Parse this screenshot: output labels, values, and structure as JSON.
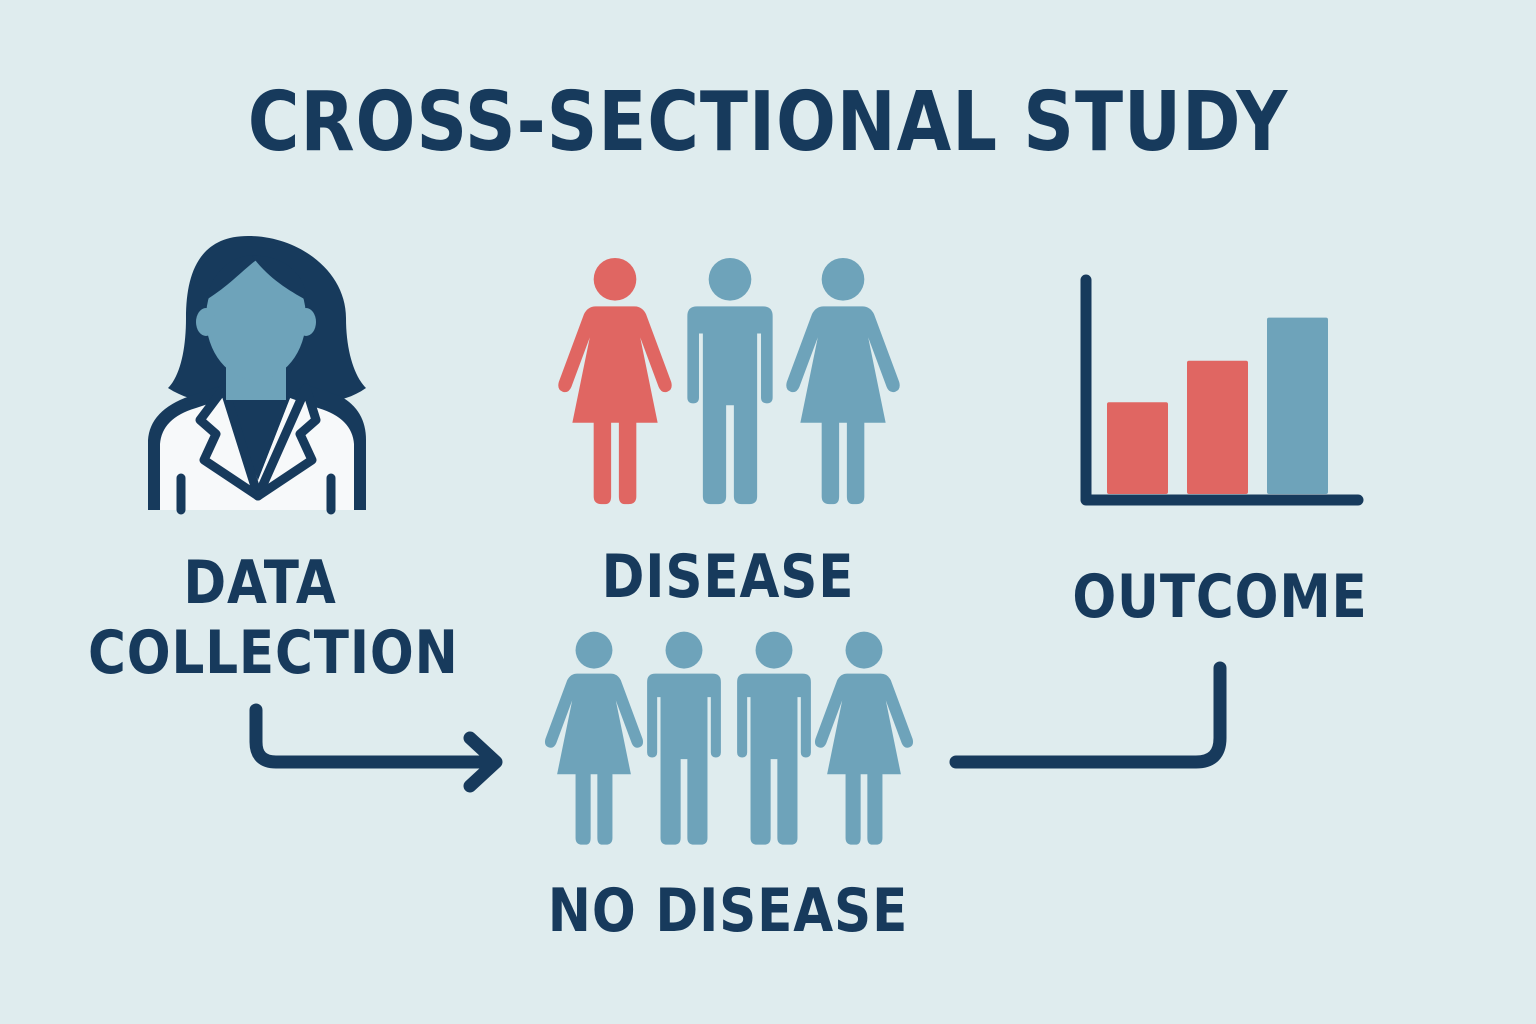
{
  "title": "CROSS-SECTIONAL STUDY",
  "labels": {
    "data_collection_line1": "DATA",
    "data_collection_line2": "COLLECTION",
    "disease": "DISEASE",
    "no_disease": "NO DISEASE",
    "outcome": "OUTCOME"
  },
  "icons": [
    "researcher-icon",
    "disease-group-icon",
    "no-disease-group-icon",
    "bar-chart-icon",
    "arrow-icon",
    "connector-line-icon"
  ],
  "colors": {
    "background": "#dfecee",
    "navy": "#173a5c",
    "blue": "#6ea3ba",
    "red": "#e06662",
    "white": "#f7f9fa"
  },
  "chart_bars": [
    {
      "color": "red",
      "relative_height": 0.51
    },
    {
      "color": "red",
      "relative_height": 0.74
    },
    {
      "color": "blue",
      "relative_height": 0.98
    }
  ]
}
